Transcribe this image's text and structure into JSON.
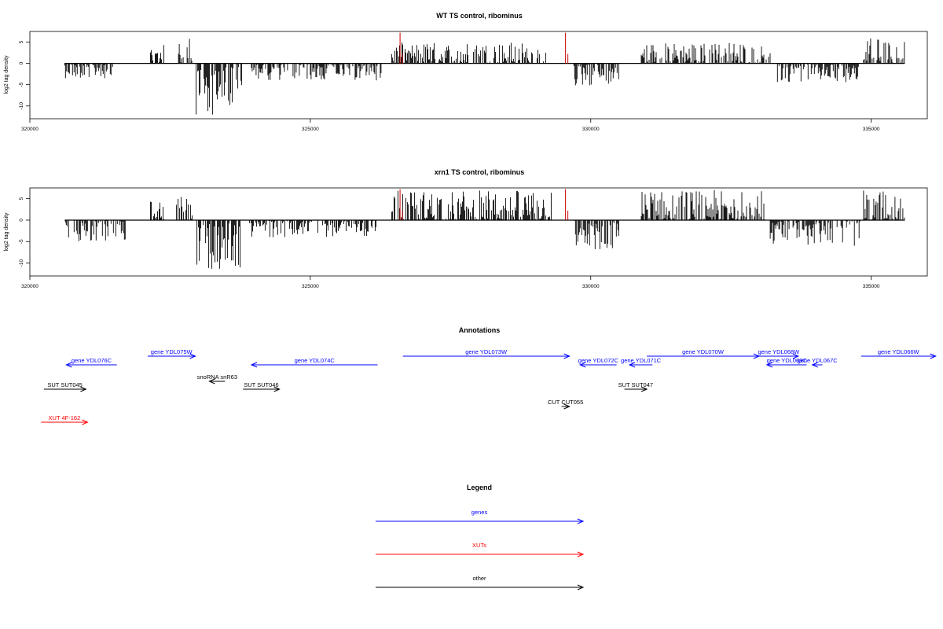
{
  "colors": {
    "gene": "#0000ff",
    "xut": "#ff0000",
    "other": "#000000",
    "highlight": "#cc0000",
    "axis": "#000000"
  },
  "chart_data": [
    {
      "type": "bar",
      "title": "WT TS control, ribominus",
      "ylabel": "log2 tag density",
      "xlim": [
        320000,
        336000
      ],
      "ylim": [
        -13,
        7.5
      ],
      "xticks": [
        320000,
        325000,
        330000,
        335000
      ],
      "yticks": [
        -10,
        -5,
        0,
        5
      ],
      "ytick_labels": [
        "-10",
        "-5",
        "0",
        "5"
      ],
      "highlight_x": [
        326600,
        329550
      ],
      "regions": [
        {
          "x0": 320620,
          "x1": 321500,
          "sign": -1,
          "max": 3.5
        },
        {
          "x0": 322150,
          "x1": 322400,
          "sign": 1,
          "max": 4.5
        },
        {
          "x0": 322650,
          "x1": 322900,
          "sign": 1,
          "max": 6.5
        },
        {
          "x0": 322950,
          "x1": 323800,
          "sign": -1,
          "max": 12.5
        },
        {
          "x0": 323950,
          "x1": 326300,
          "sign": -1,
          "max": 4
        },
        {
          "x0": 326450,
          "x1": 329200,
          "sign": 1,
          "max": 5
        },
        {
          "x0": 329700,
          "x1": 330500,
          "sign": -1,
          "max": 5.5
        },
        {
          "x0": 330900,
          "x1": 333200,
          "sign": 1,
          "max": 5
        },
        {
          "x0": 333300,
          "x1": 334800,
          "sign": -1,
          "max": 4.5
        },
        {
          "x0": 334850,
          "x1": 335600,
          "sign": 1,
          "max": 6
        }
      ]
    },
    {
      "type": "bar",
      "title": "xrn1 TS control, ribominus",
      "ylabel": "log2 tag density",
      "xlim": [
        320000,
        336000
      ],
      "ylim": [
        -13,
        7.5
      ],
      "xticks": [
        320000,
        325000,
        330000,
        335000
      ],
      "yticks": [
        -10,
        -5,
        0,
        5
      ],
      "ytick_labels": [
        "-10",
        "-5",
        "0",
        "5"
      ],
      "highlight_x": [
        326600,
        329550
      ],
      "regions": [
        {
          "x0": 320620,
          "x1": 321700,
          "sign": -1,
          "max": 5
        },
        {
          "x0": 322150,
          "x1": 322400,
          "sign": 1,
          "max": 4.5
        },
        {
          "x0": 322600,
          "x1": 322900,
          "sign": 1,
          "max": 6
        },
        {
          "x0": 322950,
          "x1": 323750,
          "sign": -1,
          "max": 12.5
        },
        {
          "x0": 323900,
          "x1": 326200,
          "sign": -1,
          "max": 4
        },
        {
          "x0": 326450,
          "x1": 329300,
          "sign": 1,
          "max": 7
        },
        {
          "x0": 329700,
          "x1": 330500,
          "sign": -1,
          "max": 7
        },
        {
          "x0": 330900,
          "x1": 333100,
          "sign": 1,
          "max": 7
        },
        {
          "x0": 333200,
          "x1": 334800,
          "sign": -1,
          "max": 6
        },
        {
          "x0": 334850,
          "x1": 335600,
          "sign": 1,
          "max": 7
        }
      ]
    }
  ],
  "annotations": {
    "title": "Annotations",
    "features": [
      {
        "label": "gene YDL076C",
        "kind": "gene",
        "strand": "-",
        "start": 320650,
        "end": 321550,
        "row": 1
      },
      {
        "label": "gene YDL075W",
        "kind": "gene",
        "strand": "+",
        "start": 322100,
        "end": 322950,
        "row": 0
      },
      {
        "label": "gene YDL074C",
        "kind": "gene",
        "strand": "-",
        "start": 323950,
        "end": 326200,
        "row": 1
      },
      {
        "label": "gene YDL073W",
        "kind": "gene",
        "strand": "+",
        "start": 326650,
        "end": 329620,
        "row": 0
      },
      {
        "label": "gene YDL072C",
        "kind": "gene",
        "strand": "-",
        "start": 329810,
        "end": 330460,
        "row": 1
      },
      {
        "label": "gene YDL071C",
        "kind": "gene",
        "strand": "-",
        "start": 330690,
        "end": 331100,
        "row": 1
      },
      {
        "label": "gene YDL070W",
        "kind": "gene",
        "strand": "+",
        "start": 331000,
        "end": 333000,
        "row": 0
      },
      {
        "label": "gene YDL068W",
        "kind": "gene",
        "strand": "+",
        "start": 333000,
        "end": 333700,
        "row": 0
      },
      {
        "label": "gene YDL069C",
        "kind": "gene",
        "strand": "-",
        "start": 333140,
        "end": 333850,
        "row": 1
      },
      {
        "label": "gene YDL067C",
        "kind": "gene",
        "strand": "-",
        "start": 333950,
        "end": 334130,
        "row": 1
      },
      {
        "label": "gene YDL066W",
        "kind": "gene",
        "strand": "+",
        "start": 334820,
        "end": 336150,
        "row": 0
      },
      {
        "label": "SUT SUT045",
        "kind": "other",
        "strand": "+",
        "start": 320250,
        "end": 321000,
        "row": 2
      },
      {
        "label": "snoRNA snR63",
        "kind": "other",
        "strand": "-",
        "start": 323200,
        "end": 323480,
        "row": 3
      },
      {
        "label": "SUT SUT046",
        "kind": "other",
        "strand": "+",
        "start": 323800,
        "end": 324450,
        "row": 2
      },
      {
        "label": "CUT CUT055",
        "kind": "other",
        "strand": "+",
        "start": 329480,
        "end": 329620,
        "row": 4
      },
      {
        "label": "SUT SUT047",
        "kind": "other",
        "strand": "+",
        "start": 330600,
        "end": 331000,
        "row": 2
      },
      {
        "label": "XUT 4F-162",
        "kind": "xut",
        "strand": "+",
        "start": 320200,
        "end": 321030,
        "row": 5
      }
    ]
  },
  "legend": {
    "title": "Legend",
    "items": [
      {
        "label": "genes",
        "kind": "gene"
      },
      {
        "label": "XUTs",
        "kind": "xut"
      },
      {
        "label": "other",
        "kind": "other"
      }
    ]
  }
}
